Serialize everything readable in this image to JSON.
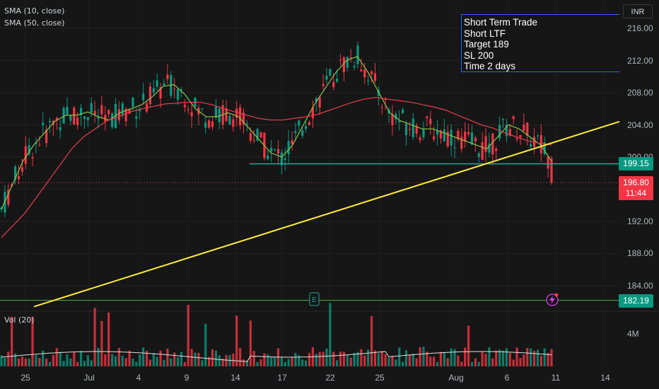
{
  "indicators": {
    "sma10": "SMA (10, close)",
    "sma50": "SMA (50, close)",
    "volume": "Vol (20)"
  },
  "currency": "INR",
  "note": {
    "lines": [
      "Short Term Trade",
      "Short LTF",
      "Target 189",
      "SL 200",
      "Time 2 days"
    ]
  },
  "price_tags": {
    "support_level": "199.15",
    "last_price": "196.80",
    "countdown": "11:44",
    "lower_level": "182.19"
  },
  "y_axis_labels": [
    "216.00",
    "212.00",
    "208.00",
    "204.00",
    "200.00",
    "192.00",
    "188.00",
    "184.00"
  ],
  "volume_axis_label": "4M",
  "x_axis_labels": [
    "25",
    "Jul",
    "4",
    "9",
    "14",
    "17",
    "22",
    "25",
    "Aug",
    "6",
    "11",
    "14"
  ],
  "markers": {
    "earnings": "E",
    "alert": "lightning-icon"
  },
  "colors": {
    "background": "#161616",
    "up": "#089981",
    "down": "#f23645",
    "sma10": "#8bc34a",
    "sma50": "#e53e4f",
    "trendline": "#ffeb3b",
    "level_line": "#26a69a",
    "note_border": "#2962ff"
  },
  "chart_data": {
    "type": "candlestick",
    "y_range": [
      181,
      218
    ],
    "levels": [
      199.15,
      182.19
    ],
    "last_price": 196.8,
    "trendline": {
      "from": [
        "Jun 27",
        181.4
      ],
      "to": [
        "Aug 14",
        204.4
      ]
    },
    "sma10_profile": [
      193.5,
      196.5,
      199.5,
      201.5,
      203,
      204.5,
      205.2,
      205.2,
      205.6,
      205,
      204.6,
      205.5,
      206,
      206.5,
      207.5,
      208.8,
      209,
      207.8,
      206,
      205,
      205,
      205.5,
      205,
      203.5,
      202,
      200.5,
      200,
      201.5,
      204,
      206.5,
      208.5,
      210.5,
      212,
      212.5,
      210.5,
      208,
      205.5,
      204.5,
      204,
      203.5,
      203.5,
      203,
      202.5,
      202,
      201.5,
      201,
      202.5,
      204,
      203.5,
      202.5,
      201.5,
      199.5
    ],
    "sma50_profile": [
      190,
      191.5,
      193,
      195,
      197,
      199,
      201,
      202.5,
      203.5,
      204.5,
      205,
      205.6,
      206,
      206.3,
      206.6,
      206.7,
      206.8,
      206.8,
      206.5,
      206,
      205.6,
      205.2,
      204.8,
      204.6,
      204.6,
      204.8,
      205,
      205.3,
      205.8,
      206.3,
      206.8,
      207.2,
      207.4,
      207.2,
      207,
      206.8,
      206.5,
      206.2,
      205.8,
      205.2,
      204.6,
      204,
      203.6,
      203,
      202.5,
      202,
      201.7,
      201.5
    ]
  }
}
